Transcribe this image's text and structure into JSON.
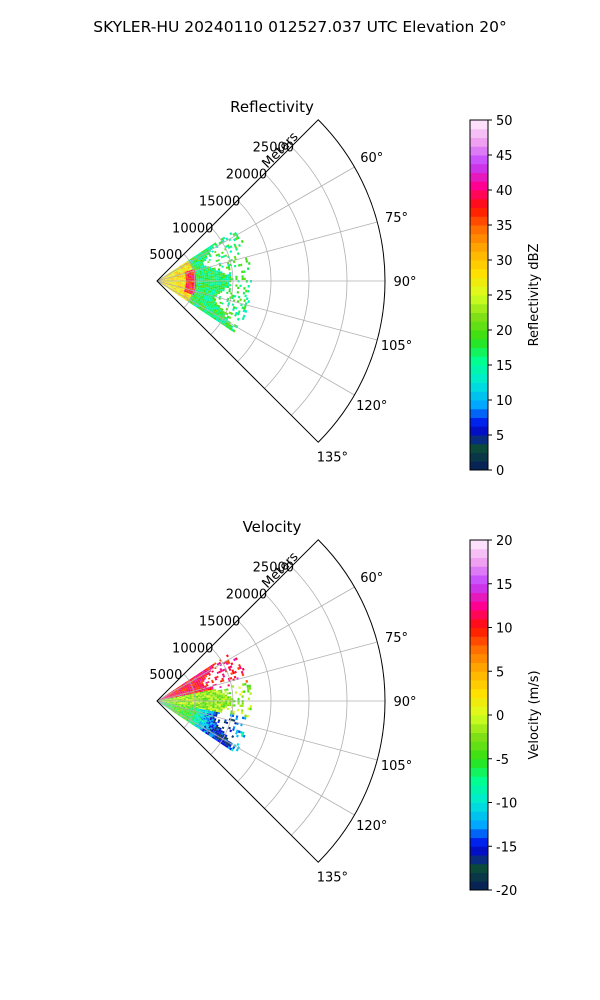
{
  "title": "SKYLER-HU  20240110  012527.037 UTC Elevation 20°",
  "chart_data": [
    {
      "type": "heatmap",
      "projection": "polar-sector",
      "title": "Reflectivity",
      "rlabel": "Meters",
      "azimuth_range_deg": [
        45,
        135
      ],
      "range_max_m": 30000,
      "range_ticks": [
        "5000",
        "10000",
        "15000",
        "20000",
        "25000"
      ],
      "angle_ticks": [
        "60°",
        "75°",
        "90°",
        "105°",
        "120°",
        "135°"
      ],
      "grid": true,
      "colorbar": {
        "label": "Reflectivity dBZ",
        "range": [
          0,
          50
        ],
        "ticks": [
          "0",
          "5",
          "10",
          "15",
          "20",
          "25",
          "30",
          "35",
          "40",
          "45",
          "50"
        ],
        "colors": [
          "#061a5c",
          "#0b4a3a",
          "#0000e8",
          "#00a8ff",
          "#00e8d8",
          "#00ff90",
          "#30e010",
          "#80e018",
          "#d8ff20",
          "#ffe000",
          "#ffb000",
          "#ff7000",
          "#ff1000",
          "#ff0090",
          "#c040ff",
          "#f0a0f0",
          "#fff0ff"
        ]
      },
      "data_extent_m": 12500,
      "features": [
        {
          "desc": "echo core",
          "range_m": [
            3800,
            5200
          ],
          "azimuth_deg": [
            75,
            108
          ],
          "value_dbz": 38
        },
        {
          "desc": "inner echo",
          "range_m": [
            0,
            5000
          ],
          "azimuth_deg": [
            60,
            120
          ],
          "value_dbz": 28
        },
        {
          "desc": "outer echo",
          "range_m": [
            5000,
            12500
          ],
          "azimuth_deg": [
            55,
            120
          ],
          "value_dbz": 17
        }
      ]
    },
    {
      "type": "heatmap",
      "projection": "polar-sector",
      "title": "Velocity",
      "rlabel": "Meters",
      "azimuth_range_deg": [
        45,
        135
      ],
      "range_max_m": 30000,
      "range_ticks": [
        "5000",
        "10000",
        "15000",
        "20000",
        "25000"
      ],
      "angle_ticks": [
        "60°",
        "75°",
        "90°",
        "105°",
        "120°",
        "135°"
      ],
      "grid": true,
      "colorbar": {
        "label": "Velocity (m/s)",
        "range": [
          -20,
          20
        ],
        "ticks": [
          "-20",
          "-15",
          "-10",
          "-5",
          "0",
          "5",
          "10",
          "15",
          "20"
        ],
        "colors": [
          "#061a5c",
          "#0b4a3a",
          "#0000e8",
          "#00a8ff",
          "#00e8d8",
          "#00ff90",
          "#30e010",
          "#80e018",
          "#d8ff20",
          "#ffe000",
          "#ffb000",
          "#ff7000",
          "#ff1000",
          "#ff0090",
          "#c040ff",
          "#f0a0f0",
          "#fff0ff"
        ]
      },
      "data_extent_m": 12500,
      "features": [
        {
          "desc": "outbound band",
          "range_m": [
            3000,
            12000
          ],
          "azimuth_deg": [
            58,
            78
          ],
          "value_ms": 11
        },
        {
          "desc": "near-zero band",
          "range_m": [
            0,
            12500
          ],
          "azimuth_deg": [
            78,
            98
          ],
          "value_ms": -2
        },
        {
          "desc": "inbound band",
          "range_m": [
            2000,
            10000
          ],
          "azimuth_deg": [
            100,
            118
          ],
          "value_ms": -10
        }
      ]
    }
  ]
}
